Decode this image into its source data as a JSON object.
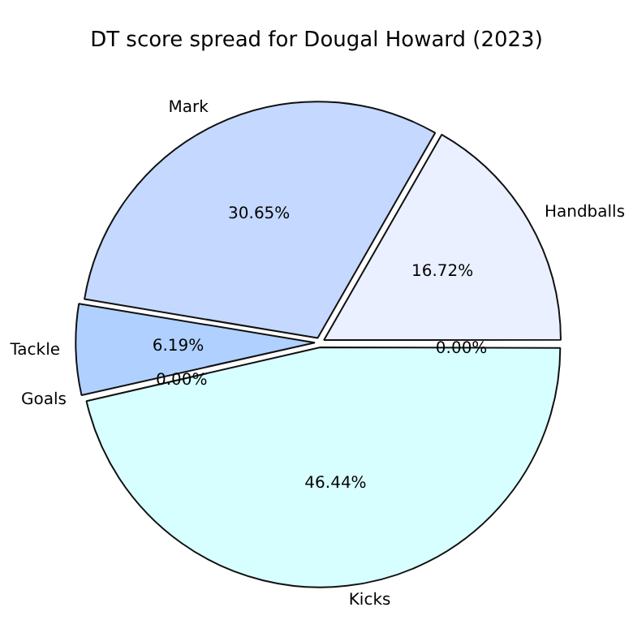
{
  "chart_data": {
    "type": "pie",
    "title": "DT score spread for Dougal Howard (2023)",
    "categories": [
      "Handballs",
      "Mark",
      "Tackle",
      "Goals",
      "Kicks",
      null
    ],
    "values": [
      16.72,
      30.65,
      6.19,
      0,
      46.44,
      0
    ],
    "colors": [
      "#eaf0ff",
      "#c5d8ff",
      "#b0d0ff",
      "#cce0ff",
      "#d8ffff",
      "#e0e8ff"
    ],
    "value_labels": [
      "16.72%",
      "30.65%",
      "6.19%",
      "0.00%",
      "46.44%",
      "0.00%"
    ]
  }
}
